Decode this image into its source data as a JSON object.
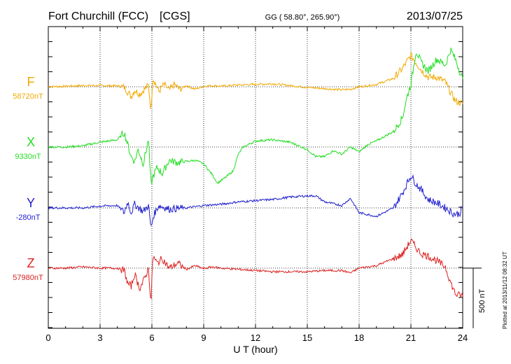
{
  "chart_data": {
    "type": "line",
    "station": "Fort Churchill (FCC)",
    "network": "[CGS]",
    "coords": "GG ( 58.80°, 265.90°)",
    "date": "2013/07/25",
    "xlabel": "U T (hour)",
    "xlim": [
      0,
      24
    ],
    "xticks": [
      "0",
      "3",
      "6",
      "9",
      "12",
      "15",
      "18",
      "21",
      "24"
    ],
    "scale_label": "500 nT",
    "scale_nT": 500,
    "plotted_note": "Plotted at 2013/11/12 08:32 UT",
    "grid": true,
    "series": [
      {
        "name": "F",
        "baseline_label": "58720nT",
        "color": "#f2a900",
        "x": [
          0,
          1,
          2,
          3,
          4,
          4.4,
          4.6,
          4.8,
          5,
          5.3,
          5.6,
          5.8,
          5.95,
          6.05,
          6.2,
          6.4,
          6.7,
          7,
          7.3,
          7.6,
          8,
          8.5,
          9,
          9.5,
          10,
          11,
          12,
          13,
          14,
          15,
          16,
          17,
          17.5,
          18,
          19,
          20,
          20.5,
          21,
          21.3,
          21.6,
          22,
          22.5,
          23,
          23.3,
          23.6,
          24
        ],
        "values": [
          0,
          5,
          10,
          10,
          8,
          -5,
          -40,
          -80,
          -30,
          -60,
          -15,
          10,
          -200,
          80,
          30,
          -40,
          20,
          -30,
          20,
          -20,
          10,
          -20,
          5,
          10,
          5,
          15,
          20,
          25,
          10,
          -5,
          -15,
          -25,
          -20,
          0,
          20,
          70,
          150,
          260,
          200,
          140,
          80,
          80,
          40,
          -50,
          -120,
          -140
        ]
      },
      {
        "name": "X",
        "baseline_label": "9330nT",
        "color": "#22dd22",
        "x": [
          0,
          1,
          2,
          3,
          4,
          4.4,
          4.6,
          4.8,
          5,
          5.2,
          5.5,
          5.8,
          5.95,
          6.05,
          6.3,
          6.6,
          7,
          7.5,
          8,
          8.5,
          9,
          9.5,
          9.8,
          10.2,
          10.7,
          11,
          11.3,
          12,
          13,
          14,
          15,
          15.5,
          16,
          16.5,
          17,
          17.5,
          18,
          18.5,
          19,
          20,
          20.5,
          20.8,
          21,
          21.3,
          21.6,
          22,
          22.5,
          23,
          23.3,
          23.6,
          24
        ],
        "values": [
          0,
          0,
          10,
          40,
          60,
          120,
          20,
          -80,
          -120,
          -20,
          -140,
          60,
          -320,
          -250,
          -170,
          -220,
          -110,
          -130,
          -120,
          -110,
          -140,
          -230,
          -300,
          -260,
          -200,
          -60,
          0,
          50,
          60,
          40,
          -20,
          -80,
          -80,
          -30,
          -60,
          0,
          -40,
          20,
          50,
          130,
          240,
          430,
          520,
          800,
          700,
          630,
          730,
          680,
          810,
          720,
          560
        ]
      },
      {
        "name": "Y",
        "baseline_label": "-280nT",
        "color": "#1f1fcf",
        "x": [
          0,
          1,
          2,
          3,
          4,
          4.4,
          4.6,
          4.8,
          5,
          5.5,
          5.8,
          5.95,
          6.1,
          6.4,
          7,
          8,
          9,
          10,
          11,
          12,
          13,
          14,
          15,
          15.5,
          16,
          17,
          17.5,
          18,
          19,
          20,
          20.5,
          21,
          21.3,
          21.6,
          22,
          22.5,
          23,
          23.5,
          23.8,
          24
        ],
        "values": [
          0,
          0,
          0,
          15,
          20,
          -40,
          50,
          -40,
          30,
          -30,
          20,
          -170,
          -60,
          20,
          -10,
          0,
          20,
          30,
          50,
          60,
          70,
          90,
          100,
          100,
          50,
          20,
          80,
          -40,
          -70,
          0,
          120,
          270,
          200,
          150,
          70,
          40,
          0,
          -50,
          -50,
          0
        ]
      },
      {
        "name": "Z",
        "baseline_label": "57980nT",
        "color": "#dd2222",
        "x": [
          0,
          1,
          2,
          3,
          4,
          4.4,
          4.6,
          4.8,
          5,
          5.3,
          5.6,
          5.8,
          5.95,
          6.05,
          6.3,
          6.6,
          7,
          7.5,
          8,
          8.5,
          9,
          9.5,
          10,
          11,
          12,
          13,
          14,
          15,
          16,
          17,
          17.5,
          18,
          19,
          20,
          20.5,
          21,
          21.3,
          21.6,
          22,
          22.5,
          23,
          23.3,
          23.6,
          24
        ],
        "values": [
          0,
          0,
          10,
          0,
          0,
          -20,
          -130,
          -150,
          -50,
          -170,
          -80,
          0,
          -300,
          100,
          40,
          80,
          0,
          40,
          -10,
          20,
          -5,
          10,
          0,
          -10,
          -20,
          -30,
          -30,
          -30,
          -20,
          -20,
          -40,
          0,
          20,
          80,
          110,
          230,
          170,
          120,
          100,
          60,
          10,
          -120,
          -220,
          -230
        ]
      }
    ]
  }
}
